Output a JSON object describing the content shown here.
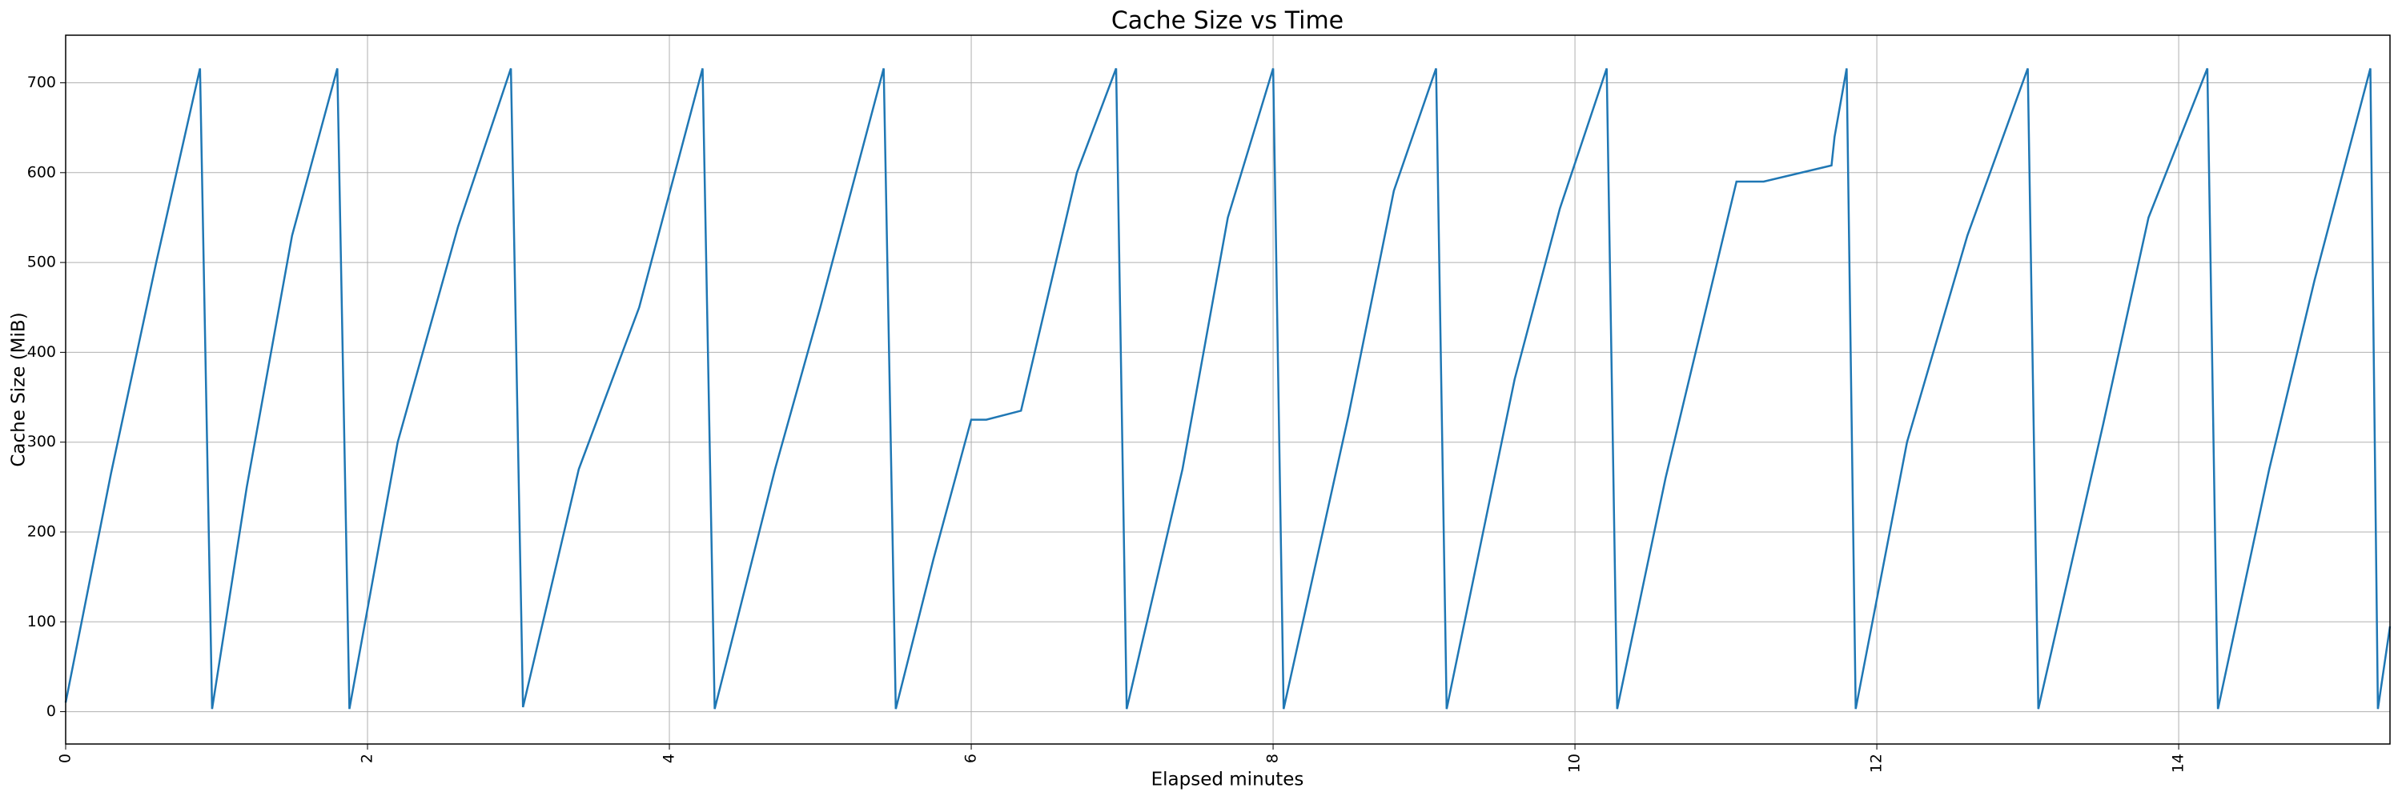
{
  "chart_data": {
    "type": "line",
    "title": "Cache Size vs Time",
    "x_label": "Elapsed minutes",
    "y_label": "Cache Size (MiB)",
    "xlim": [
      0,
      15.4
    ],
    "ylim": [
      -36,
      753
    ],
    "xticks": [
      0,
      2,
      4,
      6,
      8,
      10,
      12,
      14
    ],
    "yticks": [
      0,
      100,
      200,
      300,
      400,
      500,
      600,
      700
    ],
    "grid": true,
    "series": [
      {
        "name": "Cache Size",
        "color": "#1f77b4",
        "x": [
          0,
          0.3,
          0.6,
          0.89,
          0.97,
          1.2,
          1.5,
          1.8,
          1.88,
          2.2,
          2.6,
          2.95,
          3.03,
          3.4,
          3.8,
          4.22,
          4.3,
          4.7,
          5.0,
          5.42,
          5.5,
          5.75,
          6.0,
          6.1,
          6.33,
          6.7,
          6.96,
          7.03,
          7.4,
          7.7,
          8.0,
          8.07,
          8.5,
          8.8,
          9.08,
          9.15,
          9.6,
          9.9,
          10.21,
          10.28,
          10.6,
          11.07,
          11.25,
          11.7,
          11.72,
          11.8,
          11.86,
          12.2,
          12.6,
          13.0,
          13.07,
          13.5,
          13.8,
          14.19,
          14.26,
          14.6,
          14.9,
          15.27,
          15.32,
          15.4
        ],
        "values": [
          10,
          265,
          500,
          716,
          3,
          250,
          530,
          716,
          3,
          300,
          540,
          716,
          5,
          270,
          450,
          716,
          3,
          270,
          450,
          716,
          3,
          170,
          325,
          325,
          335,
          600,
          716,
          3,
          270,
          550,
          716,
          3,
          330,
          580,
          716,
          3,
          370,
          560,
          716,
          3,
          260,
          590,
          590,
          608,
          640,
          716,
          3,
          300,
          530,
          716,
          3,
          320,
          550,
          716,
          3,
          270,
          480,
          716,
          3,
          95
        ]
      }
    ]
  }
}
